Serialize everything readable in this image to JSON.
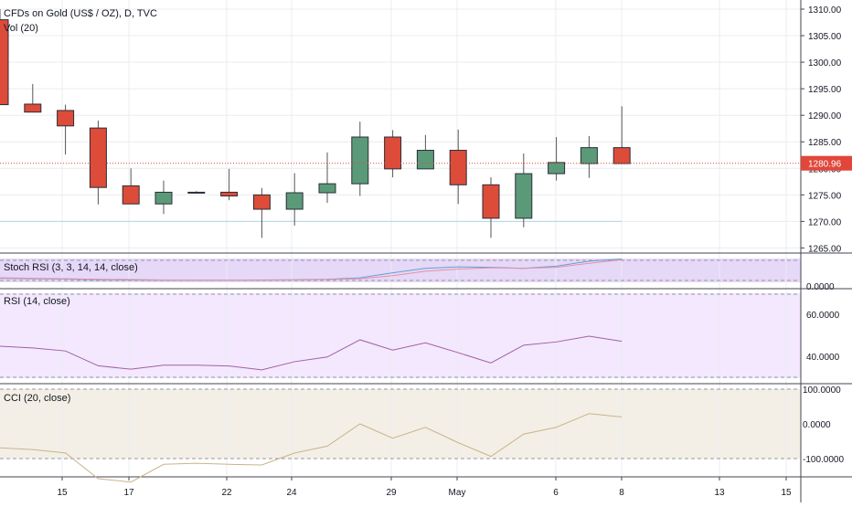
{
  "header": {
    "symbol_line": "CFDs on Gold (US$ / OZ), D, TVC",
    "volume_line": "Vol (20)"
  },
  "price_axis": {
    "ticks": [
      "1310.00",
      "1305.00",
      "1300.00",
      "1295.00",
      "1290.00",
      "1285.00",
      "1280.00",
      "1275.00",
      "1270.00",
      "1265.00"
    ],
    "last_price_label": "1280.96"
  },
  "stoch_panel": {
    "label": "Stoch RSI (3, 3, 14, 14, close)",
    "axis_label": "0.0000"
  },
  "rsi_panel": {
    "label": "RSI (14, close)",
    "axis_labels": [
      "60.0000",
      "40.0000"
    ]
  },
  "cci_panel": {
    "label": "CCI (20, close)",
    "axis_labels": [
      "100.0000",
      "0.0000",
      "-100.0000"
    ]
  },
  "time_axis": {
    "labels": [
      "15",
      "17",
      "22",
      "24",
      "29",
      "May",
      "6",
      "8",
      "13",
      "15"
    ]
  },
  "colors": {
    "up": "#5b9a78",
    "down": "#dd4b39",
    "grid": "#e9ecf1",
    "stoch_bg": "#e6d8f7",
    "rsi_bg": "#f3e8fd",
    "cci_bg": "#f3efe6",
    "rsi_line": "#a35ea8",
    "cci_line": "#c8b48c",
    "last_price": "#e0473a"
  },
  "chart_data": {
    "type": "candlestick",
    "title": "CFDs on Gold (US$ / OZ), D, TVC",
    "y_range": [
      1263,
      1312
    ],
    "candles": [
      {
        "open": 1308.0,
        "high": 1310.0,
        "low": 1292.0,
        "close": 1292.0
      },
      {
        "open": 1292.1,
        "high": 1295.9,
        "low": 1290.6,
        "close": 1290.6
      },
      {
        "open": 1290.9,
        "high": 1292.0,
        "low": 1282.6,
        "close": 1288.0
      },
      {
        "open": 1287.6,
        "high": 1289.0,
        "low": 1273.2,
        "close": 1276.4
      },
      {
        "open": 1276.7,
        "high": 1280.0,
        "low": 1273.3,
        "close": 1273.3
      },
      {
        "open": 1273.3,
        "high": 1277.7,
        "low": 1271.4,
        "close": 1275.5
      },
      {
        "open": 1275.5,
        "high": 1275.7,
        "low": 1275.3,
        "close": 1275.5
      },
      {
        "open": 1275.5,
        "high": 1279.9,
        "low": 1274.0,
        "close": 1274.8
      },
      {
        "open": 1275.0,
        "high": 1276.3,
        "low": 1266.9,
        "close": 1272.3
      },
      {
        "open": 1272.3,
        "high": 1279.1,
        "low": 1269.2,
        "close": 1275.4
      },
      {
        "open": 1275.4,
        "high": 1283.0,
        "low": 1273.5,
        "close": 1277.1
      },
      {
        "open": 1277.1,
        "high": 1288.8,
        "low": 1274.8,
        "close": 1285.9
      },
      {
        "open": 1285.9,
        "high": 1287.2,
        "low": 1278.3,
        "close": 1279.9
      },
      {
        "open": 1279.9,
        "high": 1286.3,
        "low": 1279.9,
        "close": 1283.4
      },
      {
        "open": 1283.4,
        "high": 1287.3,
        "low": 1273.3,
        "close": 1276.9
      },
      {
        "open": 1276.9,
        "high": 1278.3,
        "low": 1266.9,
        "close": 1270.6
      },
      {
        "open": 1270.6,
        "high": 1282.8,
        "low": 1268.9,
        "close": 1279.0
      },
      {
        "open": 1279.0,
        "high": 1285.9,
        "low": 1277.7,
        "close": 1281.1
      },
      {
        "open": 1280.9,
        "high": 1286.1,
        "low": 1278.2,
        "close": 1283.9
      },
      {
        "open": 1283.9,
        "high": 1291.7,
        "low": 1280.9,
        "close": 1280.9
      }
    ],
    "last_price": 1280.96,
    "support_level": 1270.0,
    "stoch_rsi": {
      "k": [
        0.1,
        0.08,
        0.06,
        0.03,
        0.02,
        0.01,
        0.01,
        0.01,
        0.02,
        0.03,
        0.05,
        0.12,
        0.35,
        0.55,
        0.62,
        0.6,
        0.55,
        0.65,
        0.88,
        0.98
      ],
      "d": [
        0.12,
        0.1,
        0.08,
        0.05,
        0.04,
        0.02,
        0.01,
        0.01,
        0.01,
        0.02,
        0.04,
        0.08,
        0.22,
        0.42,
        0.52,
        0.58,
        0.55,
        0.6,
        0.78,
        0.95
      ]
    },
    "rsi": [
      45.1,
      44.3,
      42.9,
      36.0,
      34.4,
      36.3,
      36.3,
      35.9,
      34.1,
      37.9,
      40.1,
      48.1,
      43.3,
      46.7,
      42.1,
      37.3,
      45.6,
      47.1,
      49.8,
      47.4
    ],
    "cci": [
      -70,
      -75,
      -85,
      -160,
      -170,
      -118,
      -115,
      -118,
      -120,
      -85,
      -65,
      0,
      -42,
      -10,
      -55,
      -95,
      -30,
      -10,
      30,
      20
    ]
  }
}
